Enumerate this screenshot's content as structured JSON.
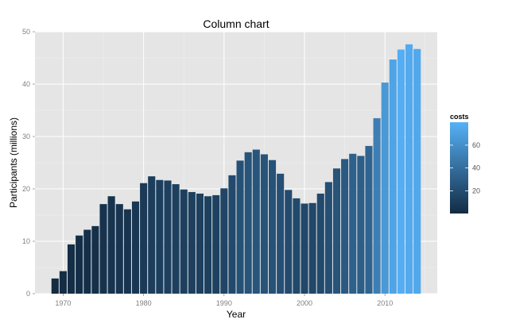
{
  "chart_data": {
    "type": "bar",
    "title": "Column chart",
    "xlabel": "Year",
    "ylabel": "Participants (millions)",
    "x": [
      1969,
      1970,
      1971,
      1972,
      1973,
      1974,
      1975,
      1976,
      1977,
      1978,
      1979,
      1980,
      1981,
      1982,
      1983,
      1984,
      1985,
      1986,
      1987,
      1988,
      1989,
      1990,
      1991,
      1992,
      1993,
      1994,
      1995,
      1996,
      1997,
      1998,
      1999,
      2000,
      2001,
      2002,
      2003,
      2004,
      2005,
      2006,
      2007,
      2008,
      2009,
      2010,
      2011,
      2012,
      2013,
      2014
    ],
    "values": [
      2.9,
      4.3,
      9.4,
      11.1,
      12.2,
      12.9,
      17.1,
      18.6,
      17.1,
      16.1,
      17.6,
      21.1,
      22.4,
      21.7,
      21.6,
      20.9,
      19.9,
      19.4,
      19.1,
      18.6,
      18.8,
      20.1,
      22.6,
      25.4,
      27.0,
      27.5,
      26.6,
      25.5,
      22.9,
      19.8,
      18.2,
      17.2,
      17.3,
      19.1,
      21.3,
      23.9,
      25.7,
      26.7,
      26.3,
      28.2,
      33.5,
      40.3,
      44.7,
      46.6,
      47.6,
      46.7
    ],
    "costs": [
      0.2,
      0.6,
      1.5,
      1.9,
      2.2,
      2.7,
      4.4,
      5.3,
      5.5,
      5.5,
      6.9,
      9.1,
      11.3,
      11.9,
      12.4,
      12.5,
      12.7,
      12.5,
      12.5,
      12.5,
      12.9,
      15.5,
      18.7,
      22.9,
      24.5,
      24.9,
      24.5,
      23.5,
      21.6,
      18.9,
      17.8,
      16.9,
      16.8,
      18.3,
      21.2,
      24.6,
      27.9,
      31.5,
      30.4,
      34.3,
      50.4,
      65.5,
      72.0,
      78.4,
      76.0,
      74.5
    ],
    "x_ticks": [
      "1970",
      "1980",
      "1990",
      "2000",
      "2010"
    ],
    "y_ticks": [
      "0",
      "10",
      "20",
      "30",
      "40",
      "50"
    ],
    "ylim": [
      0,
      50
    ],
    "xlim": [
      1966.5,
      2016.5
    ],
    "grid": true,
    "legend": {
      "title": "costs",
      "position": "right",
      "ticks": [
        "20",
        "40",
        "60"
      ],
      "range": [
        0,
        80
      ],
      "color_low": "#132B43",
      "color_high": "#56B1F7"
    }
  }
}
